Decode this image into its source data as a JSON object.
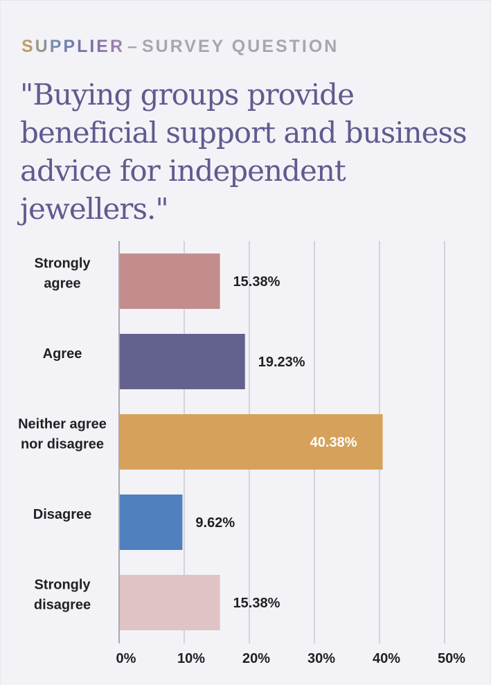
{
  "header": {
    "brand": "SUPPLIER",
    "dash": "–",
    "kicker": "SURVEY QUESTION"
  },
  "headline": "\"Buying groups provide beneficial support and business advice for independent jewellers.\"",
  "chart_data": {
    "type": "bar",
    "orientation": "horizontal",
    "categories": [
      [
        "Strongly",
        "agree"
      ],
      [
        "Agree"
      ],
      [
        "Neither agree",
        "nor disagree"
      ],
      [
        "Disagree"
      ],
      [
        "Strongly",
        "disagree"
      ]
    ],
    "values": [
      15.38,
      19.23,
      40.38,
      9.62,
      15.38
    ],
    "value_labels": [
      "15.38%",
      "19.23%",
      "40.38%",
      "9.62%",
      "15.38%"
    ],
    "colors": [
      "#c38d8d",
      "#63628f",
      "#d6a15a",
      "#5080be",
      "#e0c3c4"
    ],
    "label_inside": [
      false,
      false,
      true,
      false,
      false
    ],
    "xlim": [
      0,
      50
    ],
    "xticks": [
      0,
      10,
      20,
      30,
      40,
      50
    ],
    "xtick_labels": [
      "0%",
      "10%",
      "20%",
      "30%",
      "40%",
      "50%"
    ],
    "grid": true,
    "title": "",
    "xlabel": "",
    "ylabel": ""
  }
}
